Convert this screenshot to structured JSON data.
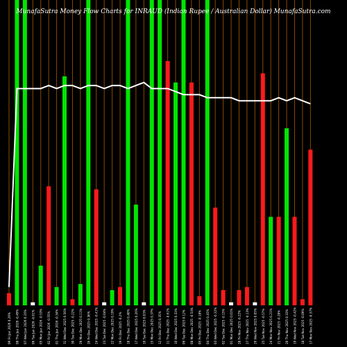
{
  "chart_data": {
    "type": "bar",
    "title": "MunafaSutra  Money Flow  Charts for INRAUD                              (Indian  Rupee  / Australian  Dollar)  MunafaSutra.com",
    "ylim": [
      0,
      100
    ],
    "grid": true,
    "series": [
      {
        "values": [
          4,
          100,
          100,
          1,
          13,
          39,
          6,
          75,
          2,
          7,
          100,
          38,
          1,
          5,
          6,
          100,
          33,
          1,
          100,
          100,
          80,
          73,
          100,
          73,
          3,
          100,
          32,
          5,
          1,
          5,
          6,
          1,
          76,
          29,
          29,
          58,
          29,
          2,
          51
        ],
        "colors": [
          "red",
          "green",
          "green",
          "white",
          "green",
          "red",
          "green",
          "green",
          "red",
          "green",
          "green",
          "red",
          "white",
          "green",
          "red",
          "green",
          "green",
          "white",
          "green",
          "green",
          "red",
          "green",
          "green",
          "red",
          "red",
          "green",
          "red",
          "red",
          "white",
          "red",
          "red",
          "white",
          "red",
          "green",
          "red",
          "green",
          "red",
          "red",
          "red"
        ]
      },
      {
        "values": [
          6,
          71,
          71,
          71,
          71,
          72,
          71,
          72,
          72,
          71,
          72,
          72,
          71,
          72,
          72,
          71,
          72,
          73,
          71,
          71,
          71,
          70,
          69,
          69,
          69,
          68,
          68,
          68,
          68,
          67,
          67,
          67,
          67,
          67,
          68,
          67,
          68,
          67,
          66
        ]
      }
    ],
    "categories": [
      "09 Fri Jan 2026 0.26%",
      "08 Thu Jan 2026 -0.49%",
      "07 Wed Jan 2026 0.35%",
      "06 Tue Jan 2026 -0.01%",
      "05 Mon Jan 2026 -0.53%",
      "02 Fri Jan 2026 -0.55%",
      "01 Thu Jan 2026 -0.34%",
      "31 Wed Dec 2025 0.56%",
      "30 Tue Dec 2025 -0.22%",
      "29 Mon Dec 2025 0.11%",
      "26 Fri Dec 2025 0.36%",
      "24 Wed Dec 2025 -0.41%",
      "23 Tue Dec 2025 -0.04%",
      "22 Mon Dec 2025 0.19%",
      "19 Fri Dec 2025 -0.2%",
      "18 Thu Dec 2025 0.40%",
      "17 Wed Dec 2025 0.26%",
      "16 Tue Dec 2025 0.03%",
      "15 Mon Dec 2025 0.37%",
      "12 Fri Dec 2025 0.35%",
      "11 Thu Dec 2025 -0.61%",
      "10 Wed Dec 2025 0.33%",
      "09 Tue Dec 2025 0.12%",
      "08 Mon Dec 2025 -0.54%",
      "05 Fri Dec 2025 -0.18%",
      "04 Thu Dec 2025 0.45%",
      "03 Wed Dec 2025 -0.32%",
      "02 Tue Dec 2025 -0.15%",
      "01 Mon Dec 2025 0.01%",
      "28 Fri Nov 2025 -0.22%",
      "27 Thu Nov 2025 -0.13%",
      "26 Wed Nov 2025 0.05%",
      "25 Tue Nov 2025 -0.57%",
      "24 Mon Nov 2025 0.21%",
      "21 Fri Nov 2025 -0.28%",
      "20 Thu Nov 2025 0.33%",
      "19 Wed Nov 2025 -0.42%",
      "18 Tue Nov 2025 -0.09%",
      "17 Mon Nov 2025 -0.37%"
    ]
  },
  "colors": {
    "background": "#000000",
    "grid": "#8b4a00",
    "green": "#00e600",
    "red": "#ff1a1a",
    "white_bar": "#ffffff",
    "line": "#ffffff",
    "text": "#ffffff"
  }
}
